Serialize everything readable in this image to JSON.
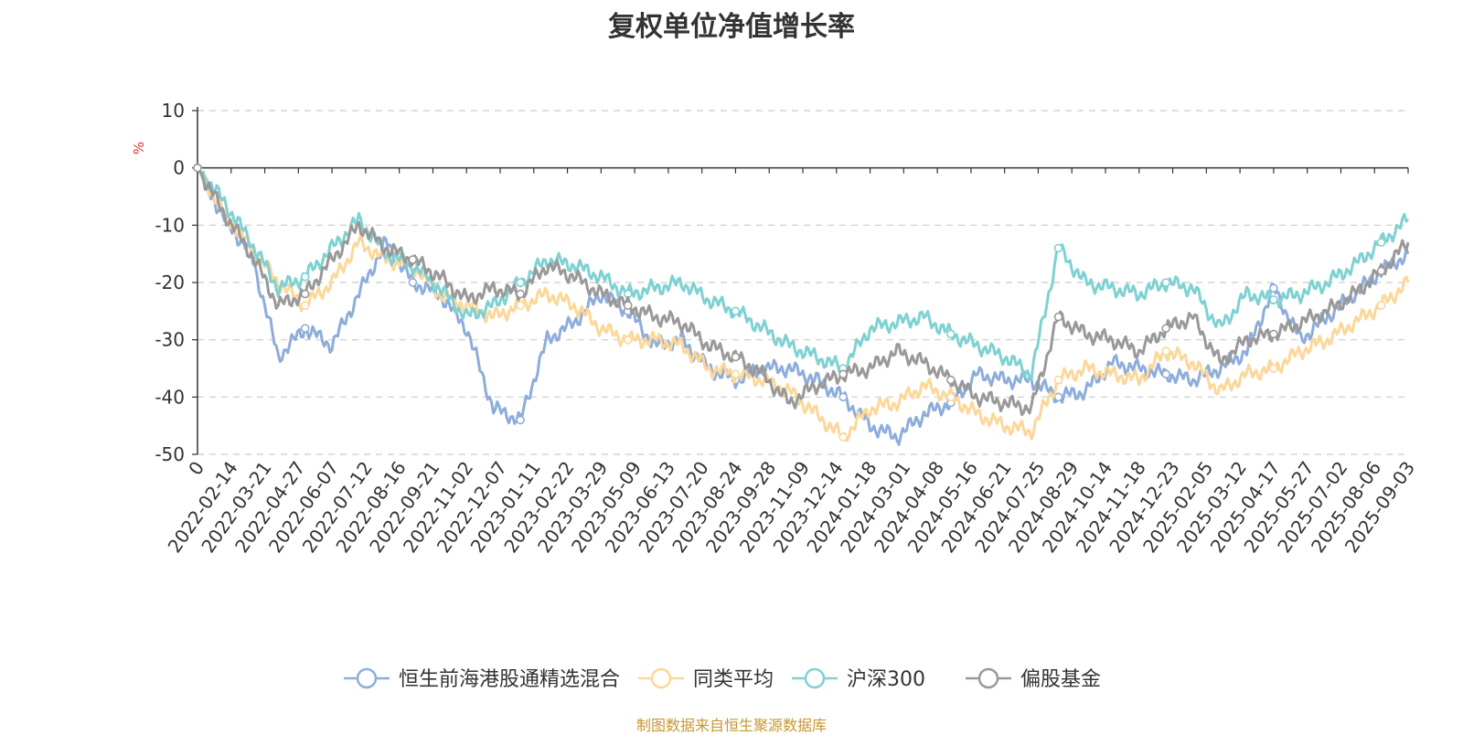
{
  "chart_data": {
    "type": "line",
    "title": "复权单位净值增长率",
    "ylabel": "%",
    "ylim": [
      -50,
      10
    ],
    "yticks": [
      "10",
      "0",
      "-10",
      "-20",
      "-30",
      "-40",
      "-50"
    ],
    "xtick_labels": [
      "0",
      "2022-02-14",
      "2022-03-21",
      "2022-04-27",
      "2022-06-07",
      "2022-07-12",
      "2022-08-16",
      "2022-09-21",
      "2022-11-02",
      "2022-12-07",
      "2023-01-11",
      "2023-02-22",
      "2023-03-29",
      "2023-05-09",
      "2023-06-13",
      "2023-07-20",
      "2023-08-24",
      "2023-09-28",
      "2023-11-09",
      "2023-12-14",
      "2024-01-18",
      "2024-03-01",
      "2024-04-08",
      "2024-05-16",
      "2024-06-21",
      "2024-07-25",
      "2024-08-29",
      "2024-10-14",
      "2024-11-18",
      "2024-12-23",
      "2025-02-05",
      "2025-03-12",
      "2025-04-17",
      "2025-05-27",
      "2025-07-02",
      "2025-08-06",
      "2025-09-03"
    ],
    "grid": true,
    "legend_position": "bottom",
    "series": [
      {
        "name": "恒生前海港股通精选混合",
        "color": "#8eaddb",
        "values": [
          0,
          -9,
          -15,
          -33,
          -28,
          -31,
          -22,
          -13,
          -20,
          -22,
          -28,
          -42,
          -44,
          -30,
          -27,
          -22,
          -25,
          -31,
          -30,
          -35,
          -37,
          -35,
          -35,
          -37,
          -40,
          -45,
          -47,
          -43,
          -41,
          -36,
          -37,
          -37,
          -40,
          -39,
          -34,
          -35,
          -36,
          -37,
          -35,
          -32,
          -21,
          -30,
          -26,
          -22,
          -18,
          -15
        ]
      },
      {
        "name": "同类平均",
        "color": "#fcd79a",
        "values": [
          0,
          -8,
          -14,
          -20,
          -24,
          -20,
          -13,
          -16,
          -17,
          -22,
          -24,
          -26,
          -24,
          -22,
          -24,
          -28,
          -30,
          -30,
          -31,
          -35,
          -36,
          -37,
          -39,
          -43,
          -47,
          -42,
          -41,
          -38,
          -40,
          -43,
          -45,
          -46,
          -37,
          -35,
          -36,
          -37,
          -32,
          -34,
          -39,
          -36,
          -35,
          -32,
          -30,
          -27,
          -24,
          -20
        ]
      },
      {
        "name": "沪深300",
        "color": "#7fd1d2",
        "values": [
          0,
          -6,
          -13,
          -21,
          -19,
          -14,
          -9,
          -15,
          -17,
          -21,
          -26,
          -24,
          -20,
          -16,
          -17,
          -19,
          -22,
          -21,
          -20,
          -23,
          -25,
          -28,
          -31,
          -33,
          -35,
          -28,
          -27,
          -26,
          -29,
          -31,
          -33,
          -36,
          -14,
          -20,
          -21,
          -22,
          -20,
          -21,
          -28,
          -22,
          -23,
          -22,
          -20,
          -17,
          -13,
          -9
        ]
      },
      {
        "name": "偏股基金",
        "color": "#999999",
        "values": [
          0,
          -8,
          -15,
          -24,
          -22,
          -16,
          -10,
          -14,
          -16,
          -19,
          -23,
          -21,
          -22,
          -17,
          -19,
          -22,
          -24,
          -26,
          -27,
          -31,
          -33,
          -36,
          -41,
          -38,
          -36,
          -35,
          -32,
          -34,
          -37,
          -40,
          -41,
          -42,
          -26,
          -29,
          -30,
          -32,
          -28,
          -26,
          -34,
          -30,
          -29,
          -27,
          -25,
          -22,
          -18,
          -13
        ]
      }
    ]
  },
  "legend_items": [
    {
      "label": "恒生前海港股通精选混合",
      "color": "#8eaddb"
    },
    {
      "label": "同类平均",
      "color": "#fcd79a"
    },
    {
      "label": "沪深300",
      "color": "#7fd1d2"
    },
    {
      "label": "偏股基金",
      "color": "#999999"
    }
  ],
  "footer": {
    "source": "制图数据来自恒生聚源数据库"
  }
}
